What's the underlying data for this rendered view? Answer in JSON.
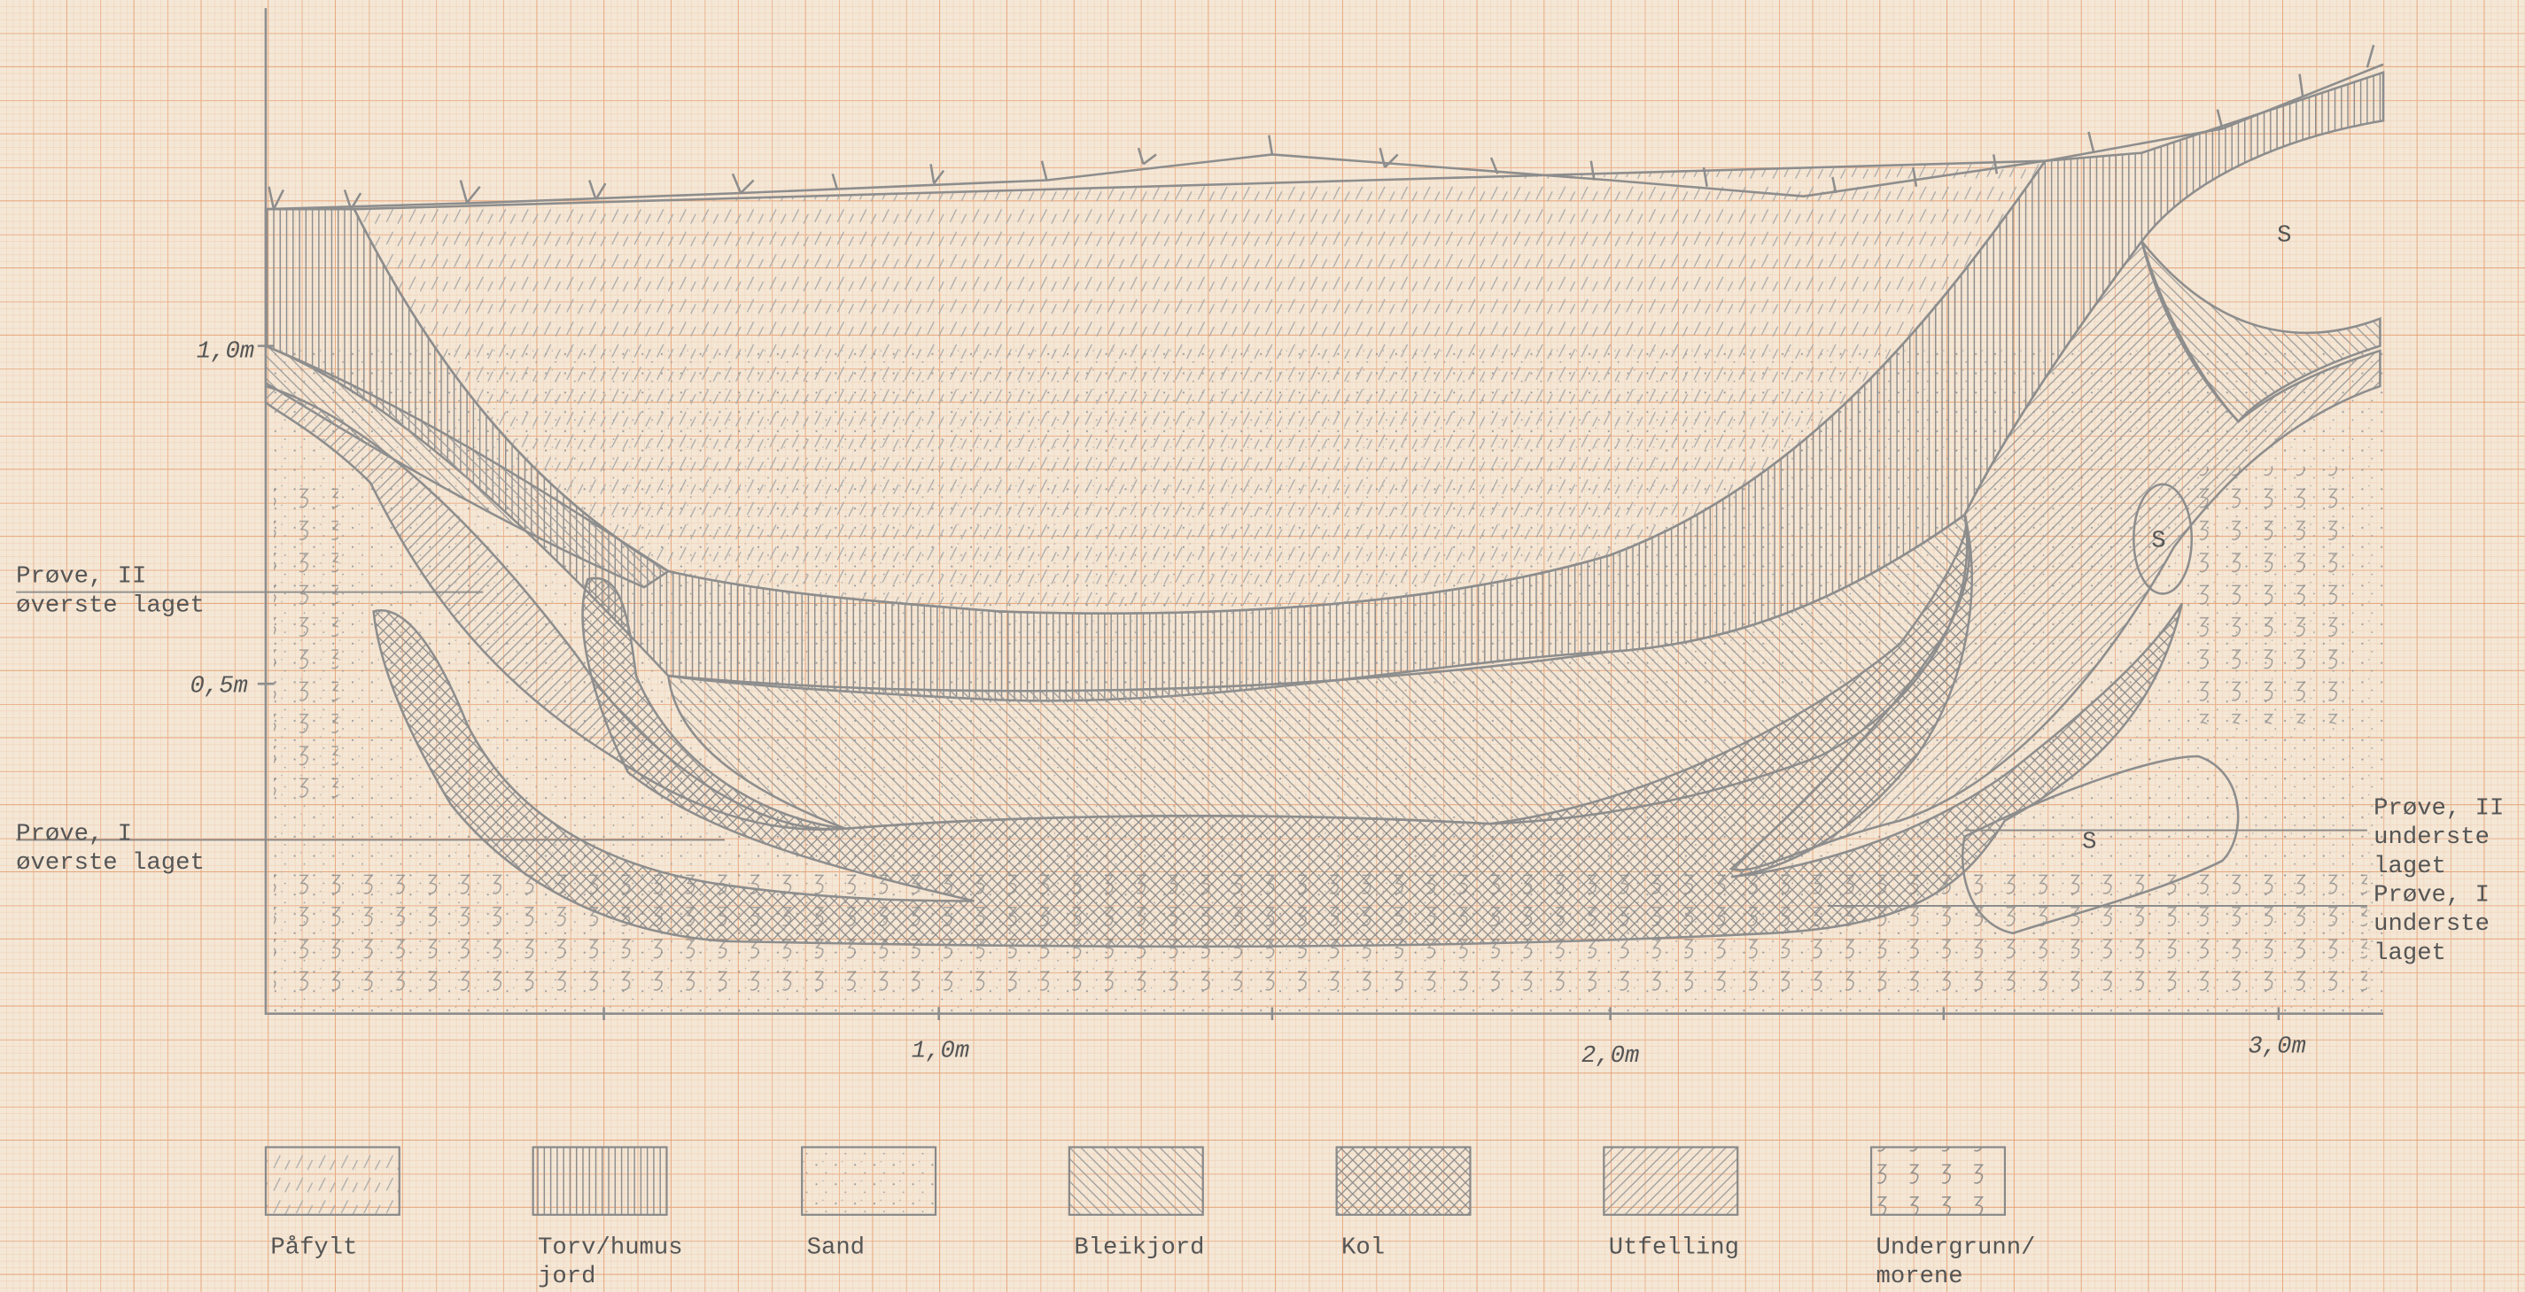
{
  "y_axis_labels": [
    "1,0m",
    "0,5m"
  ],
  "x_axis_labels": [
    "1,0m",
    "2,0m",
    "3,0m"
  ],
  "annotations": [
    {
      "lines": [
        "Prøve, II",
        "øverste laget"
      ]
    },
    {
      "lines": [
        "Prøve, I",
        "øverste laget"
      ]
    },
    {
      "lines": [
        "Prøve, II",
        "underste",
        "laget"
      ]
    },
    {
      "lines": [
        "Prøve, I",
        "underste",
        "laget"
      ]
    }
  ],
  "stone_labels": [
    "S",
    "S",
    "S"
  ],
  "legend": [
    {
      "lines": [
        "Påfylt"
      ]
    },
    {
      "lines": [
        "Torv/humus",
        "jord"
      ]
    },
    {
      "lines": [
        "Sand"
      ]
    },
    {
      "lines": [
        "Bleikjord"
      ]
    },
    {
      "lines": [
        "Kol"
      ]
    },
    {
      "lines": [
        "Utfelling"
      ]
    },
    {
      "lines": [
        "Undergrunn/",
        "morene"
      ]
    }
  ]
}
